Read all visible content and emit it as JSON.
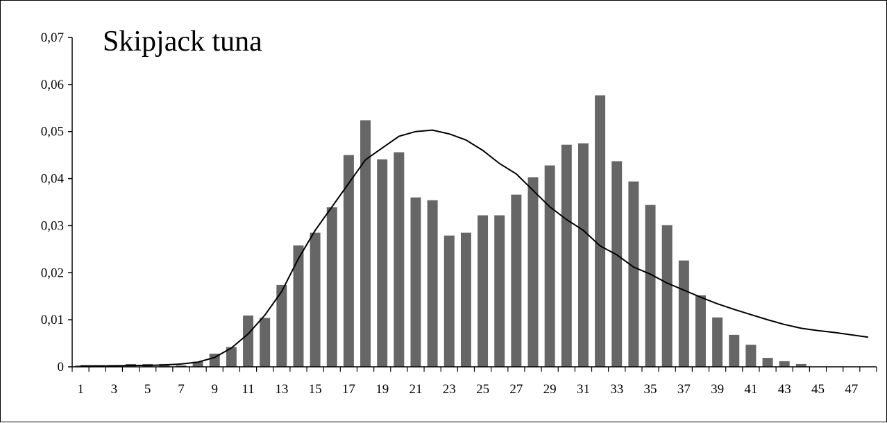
{
  "chart_data": {
    "type": "bar",
    "title": "Skipjack tuna",
    "xlabel": "",
    "ylabel": "",
    "ylim": [
      0,
      0.07
    ],
    "y_ticks": [
      "0",
      "0,01",
      "0,02",
      "0,03",
      "0,04",
      "0,05",
      "0,06",
      "0,07"
    ],
    "x_tick_labels": [
      "1",
      "3",
      "5",
      "7",
      "9",
      "11",
      "13",
      "15",
      "17",
      "19",
      "21",
      "23",
      "25",
      "27",
      "29",
      "31",
      "33",
      "35",
      "37",
      "39",
      "41",
      "43",
      "45",
      "47"
    ],
    "categories": [
      1,
      2,
      3,
      4,
      5,
      6,
      7,
      8,
      9,
      10,
      11,
      12,
      13,
      14,
      15,
      16,
      17,
      18,
      19,
      20,
      21,
      22,
      23,
      24,
      25,
      26,
      27,
      28,
      29,
      30,
      31,
      32,
      33,
      34,
      35,
      36,
      37,
      38,
      39,
      40,
      41,
      42,
      43,
      44,
      45,
      46,
      47,
      48
    ],
    "grid": false,
    "legend": "none",
    "bar_color": "#666666",
    "line_color": "#000000",
    "series": [
      {
        "type": "bar",
        "values": [
          0.0003,
          0.0003,
          0.0004,
          0.0006,
          0.0006,
          0.0006,
          0.0003,
          0.0011,
          0.0028,
          0.0042,
          0.0109,
          0.0104,
          0.0174,
          0.0258,
          0.0285,
          0.0339,
          0.045,
          0.0524,
          0.0441,
          0.0456,
          0.036,
          0.0354,
          0.0279,
          0.0285,
          0.0322,
          0.0322,
          0.0366,
          0.0403,
          0.0428,
          0.0472,
          0.0475,
          0.0577,
          0.0437,
          0.0394,
          0.0344,
          0.0301,
          0.0226,
          0.0152,
          0.0105,
          0.0068,
          0.0047,
          0.0019,
          0.0012,
          0.0006,
          0,
          0,
          0,
          0
        ]
      },
      {
        "type": "line",
        "values": [
          0.0002,
          0.0002,
          0.0002,
          0.0003,
          0.0003,
          0.0004,
          0.0006,
          0.001,
          0.002,
          0.004,
          0.007,
          0.011,
          0.016,
          0.023,
          0.029,
          0.034,
          0.039,
          0.044,
          0.0465,
          0.049,
          0.05,
          0.0503,
          0.0495,
          0.0482,
          0.046,
          0.0432,
          0.041,
          0.0375,
          0.034,
          0.0313,
          0.029,
          0.0257,
          0.0238,
          0.0212,
          0.0197,
          0.0178,
          0.0163,
          0.0148,
          0.0134,
          0.0122,
          0.0111,
          0.01,
          0.009,
          0.0082,
          0.0077,
          0.0073,
          0.0068,
          0.0063
        ]
      }
    ]
  }
}
